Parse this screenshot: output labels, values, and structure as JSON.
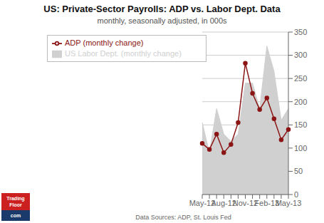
{
  "chart_data": {
    "type": "line",
    "title": "US: Private-Sector Payrolls: ADP vs. Labor Dept. Data",
    "subtitle": "monthly, seasonally adjusted, in 000s",
    "annotations": [
      {
        "text": "Data Sources: ADP, St. Louis Fed"
      },
      {
        "text": "Trading\nFloor",
        "color": "#cc2020"
      },
      {
        "text": "com",
        "color": "#1a3a6b"
      }
    ],
    "categories": [
      "May-12",
      null,
      null,
      "Aug-12",
      null,
      null,
      "Nov-12",
      null,
      null,
      "Feb-13",
      null,
      null,
      "May-13"
    ],
    "series": [
      {
        "name": "US Labor Dept. (monthly change)",
        "type": "area",
        "color": "#d0d0d0",
        "values": [
          155,
          90,
          185,
          130,
          115,
          130,
          240,
          240,
          185,
          320,
          265,
          160,
          185
        ]
      },
      {
        "name": "ADP (monthly change)",
        "type": "line",
        "color": "#8b1515",
        "marker": "circle",
        "values": [
          110,
          97,
          130,
          90,
          108,
          155,
          283,
          218,
          183,
          208,
          163,
          118,
          140
        ]
      }
    ],
    "ylim": [
      0,
      350
    ],
    "yticks": [
      0,
      50,
      100,
      150,
      200,
      250,
      300,
      350
    ],
    "grid": true,
    "legend": "upper left"
  }
}
